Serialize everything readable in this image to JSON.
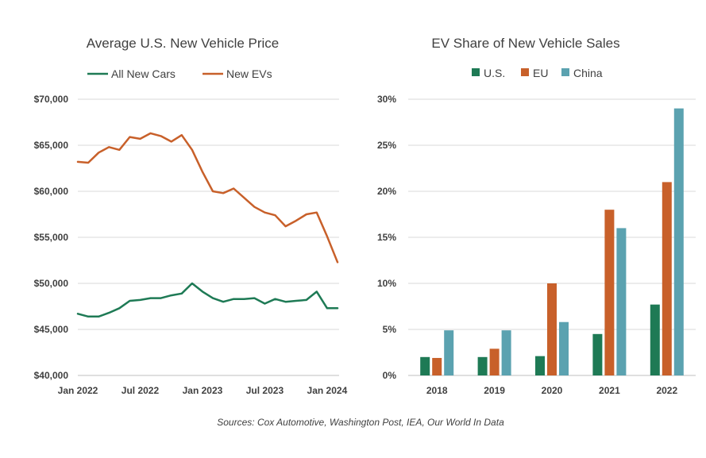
{
  "chart_data": [
    {
      "type": "line",
      "title": "Average U.S. New Vehicle Price",
      "xlabel": "",
      "ylabel": "",
      "ylim": [
        40000,
        70000
      ],
      "y_ticks": [
        "$40,000",
        "$45,000",
        "$50,000",
        "$55,000",
        "$60,000",
        "$65,000",
        "$70,000"
      ],
      "x_ticks": [
        "Jan 2022",
        "Jul 2022",
        "Jan 2023",
        "Jul 2023",
        "Jan 2024"
      ],
      "x": [
        "2022-01",
        "2022-02",
        "2022-03",
        "2022-04",
        "2022-05",
        "2022-06",
        "2022-07",
        "2022-08",
        "2022-09",
        "2022-10",
        "2022-11",
        "2022-12",
        "2023-01",
        "2023-02",
        "2023-03",
        "2023-04",
        "2023-05",
        "2023-06",
        "2023-07",
        "2023-08",
        "2023-09",
        "2023-10",
        "2023-11",
        "2023-12",
        "2024-01",
        "2024-02"
      ],
      "legend": "top",
      "grid": true,
      "series": [
        {
          "name": "All New Cars",
          "color": "#1e7a55",
          "values": [
            46700,
            46400,
            46400,
            46800,
            47300,
            48100,
            48200,
            48400,
            48400,
            48700,
            48900,
            50000,
            49100,
            48400,
            48000,
            48300,
            48300,
            48400,
            47800,
            48300,
            48000,
            48100,
            48200,
            49100,
            47300,
            47300
          ]
        },
        {
          "name": "New EVs",
          "color": "#c8602a",
          "values": [
            63200,
            63100,
            64200,
            64800,
            64500,
            65900,
            65700,
            66300,
            66000,
            65400,
            66100,
            64500,
            62100,
            60000,
            59800,
            60300,
            59300,
            58300,
            57700,
            57400,
            56200,
            56800,
            57500,
            57700,
            55100,
            52300
          ]
        }
      ]
    },
    {
      "type": "bar",
      "title": "EV Share of New Vehicle Sales",
      "xlabel": "",
      "ylabel": "",
      "ylim": [
        0,
        30
      ],
      "y_ticks": [
        "0%",
        "5%",
        "10%",
        "15%",
        "20%",
        "25%",
        "30%"
      ],
      "categories": [
        "2018",
        "2019",
        "2020",
        "2021",
        "2022"
      ],
      "legend": "top",
      "grid": true,
      "series": [
        {
          "name": "U.S.",
          "color": "#1e7a55",
          "values": [
            2.0,
            2.0,
            2.1,
            4.5,
            7.7
          ]
        },
        {
          "name": "EU",
          "color": "#c8602a",
          "values": [
            1.9,
            2.9,
            10.0,
            18.0,
            21.0
          ]
        },
        {
          "name": "China",
          "color": "#5ba2b0",
          "values": [
            4.9,
            4.9,
            5.8,
            16.0,
            29.0
          ]
        }
      ]
    }
  ],
  "source_text": "Sources: Cox Automotive, Washington Post, IEA, Our World In Data"
}
